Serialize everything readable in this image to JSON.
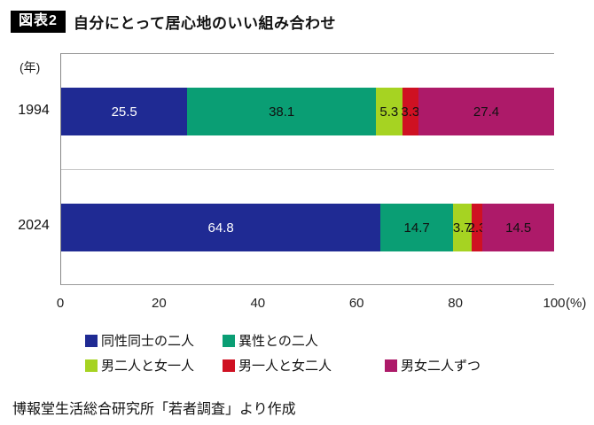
{
  "title": {
    "tag": "図表2",
    "text": "自分にとって居心地のいい組み合わせ"
  },
  "chart_data": {
    "type": "bar",
    "orientation": "horizontal",
    "stacked": true,
    "unit_label_y": "(年)",
    "categories": [
      "1994",
      "2024"
    ],
    "series": [
      {
        "name": "同性同士の二人",
        "color": "#1f2a93",
        "label_color": "#ffffff",
        "values": [
          25.5,
          64.8
        ]
      },
      {
        "name": "異性との二人",
        "color": "#0a9e74",
        "label_color": "#111111",
        "values": [
          38.1,
          14.7
        ]
      },
      {
        "name": "男二人と女一人",
        "color": "#a6d322",
        "label_color": "#111111",
        "values": [
          5.3,
          3.7
        ]
      },
      {
        "name": "男一人と女二人",
        "color": "#cf1122",
        "label_color": "#111111",
        "values": [
          3.3,
          2.3
        ]
      },
      {
        "name": "男女二人ずつ",
        "color": "#ad1a69",
        "label_color": "#111111",
        "values": [
          27.4,
          14.5
        ]
      }
    ],
    "x_ticks": [
      0,
      20,
      40,
      60,
      80,
      100
    ],
    "x_axis_suffix": "(%)",
    "xlim": [
      0,
      100
    ],
    "grid": "category-boundaries",
    "legend_position": "bottom"
  },
  "footer": "博報堂生活総合研究所「若者調査」より作成"
}
